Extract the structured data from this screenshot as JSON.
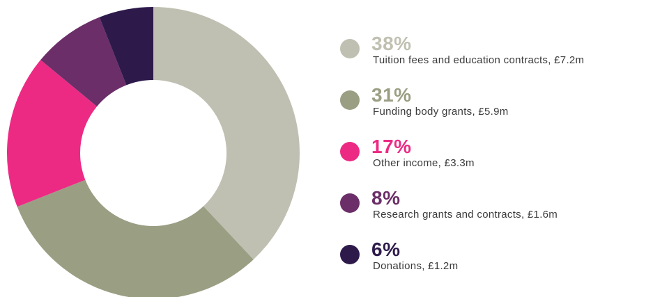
{
  "chart_data": {
    "type": "pie",
    "variant": "donut",
    "title": "",
    "slices": [
      {
        "label": "38%",
        "description": "Tuition fees and education contracts, £7.2m",
        "value": 38,
        "amount": "£7.2m",
        "color": "#c0c0b2"
      },
      {
        "label": "31%",
        "description": "Funding body grants, £5.9m",
        "value": 31,
        "amount": "£5.9m",
        "color": "#9a9f83"
      },
      {
        "label": "17%",
        "description": "Other income, £3.3m",
        "value": 17,
        "amount": "£3.3m",
        "color": "#ec2a84"
      },
      {
        "label": "8%",
        "description": "Research grants and contracts, £1.6m",
        "value": 8,
        "amount": "£1.6m",
        "color": "#6b2e68"
      },
      {
        "label": "6%",
        "description": "Donations, £1.2m",
        "value": 6,
        "amount": "£1.2m",
        "color": "#2d1a4b"
      }
    ],
    "start": "top",
    "direction": "clockwise",
    "legend_position": "right"
  }
}
